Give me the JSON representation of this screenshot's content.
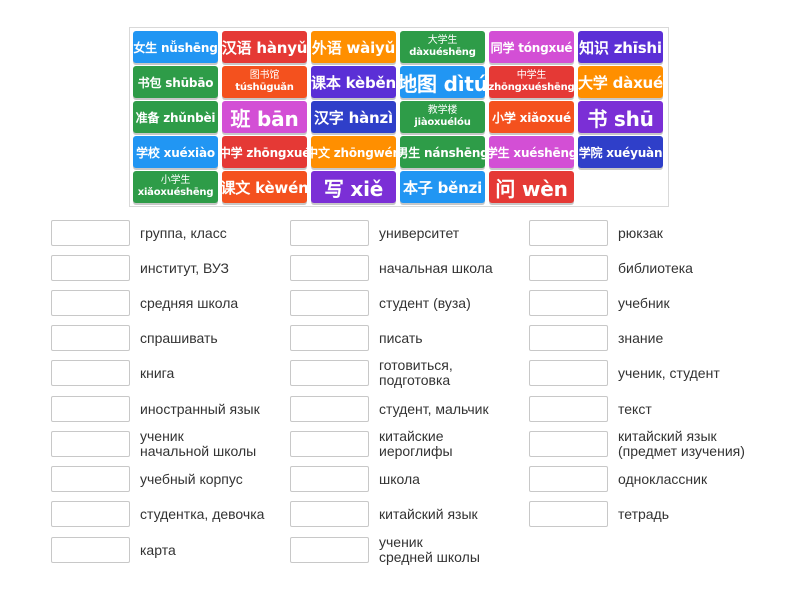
{
  "tiles": [
    {
      "text": "女生 nǚshēng",
      "color": "#2196f3",
      "style": "small"
    },
    {
      "text": "汉语 hànyǔ",
      "color": "#e53935",
      "style": "med"
    },
    {
      "text": "外语 wàiyǔ",
      "color": "#ff8f00",
      "style": "med"
    },
    {
      "text": "大学生\ndàxuéshēng",
      "color": "#2e9c48",
      "style": "stack"
    },
    {
      "text": "同学 tóngxué",
      "color": "#d34fd5",
      "style": "small"
    },
    {
      "text": "知识 zhīshi",
      "color": "#5b2fd6",
      "style": "med"
    },
    {
      "text": "书包 shūbāo",
      "color": "#2e9c48",
      "style": "small"
    },
    {
      "text": "图书馆\ntúshūguǎn",
      "color": "#f4511e",
      "style": "stack"
    },
    {
      "text": "课本 kèběn",
      "color": "#5b2fd6",
      "style": "med"
    },
    {
      "text": "地图 dìtú",
      "color": "#2196f3",
      "style": "big"
    },
    {
      "text": "中学生\nzhōngxuéshēng",
      "color": "#e53935",
      "style": "stack"
    },
    {
      "text": "大学 dàxué",
      "color": "#ff8f00",
      "style": "med"
    },
    {
      "text": "准备 zhǔnbèi",
      "color": "#2e9c48",
      "style": "small"
    },
    {
      "text": "班 bān",
      "color": "#d34fd5",
      "style": "big"
    },
    {
      "text": "汉字 hànzì",
      "color": "#2f3fc9",
      "style": "med"
    },
    {
      "text": "教学楼\njiàoxuélóu",
      "color": "#2e9c48",
      "style": "stack"
    },
    {
      "text": "小学 xiǎoxué",
      "color": "#f4511e",
      "style": "small"
    },
    {
      "text": "书 shū",
      "color": "#7b2fd6",
      "style": "big"
    },
    {
      "text": "学校 xuéxiào",
      "color": "#2196f3",
      "style": "small"
    },
    {
      "text": "中学 zhōngxué",
      "color": "#e53935",
      "style": "small"
    },
    {
      "text": "中文 zhōngwén",
      "color": "#ff8f00",
      "style": "small"
    },
    {
      "text": "男生 nánshēng",
      "color": "#2e9c48",
      "style": "small"
    },
    {
      "text": "学生 xuéshēng",
      "color": "#d34fd5",
      "style": "small"
    },
    {
      "text": "学院 xuéyuàn",
      "color": "#2f3fc9",
      "style": "small"
    },
    {
      "text": "小学生\nxiǎoxuéshēng",
      "color": "#2e9c48",
      "style": "stack"
    },
    {
      "text": "课文 kèwén",
      "color": "#f4511e",
      "style": "med"
    },
    {
      "text": "写 xiě",
      "color": "#7b2fd6",
      "style": "big"
    },
    {
      "text": "本子 běnzi",
      "color": "#2196f3",
      "style": "med"
    },
    {
      "text": "问 wèn",
      "color": "#e53935",
      "style": "big"
    }
  ],
  "columns": [
    [
      "группа, класс",
      "институт, ВУЗ",
      "средняя школа",
      "спрашивать",
      "книга",
      "иностранный язык",
      "ученик\nначальной школы",
      "учебный корпус",
      "студентка, девочка",
      "карта"
    ],
    [
      "университет",
      "начальная школа",
      "студент (вуза)",
      "писать",
      "готовиться,\nподготовка",
      "студент, мальчик",
      "китайские\nиероглифы",
      "школа",
      "китайский язык",
      "ученик\nсредней школы"
    ],
    [
      "рюкзак",
      "библиотека",
      "учебник",
      "знание",
      "ученик, студент",
      "текст",
      "китайский язык\n(предмет изучения)",
      "одноклассник",
      "тетрадь"
    ]
  ]
}
